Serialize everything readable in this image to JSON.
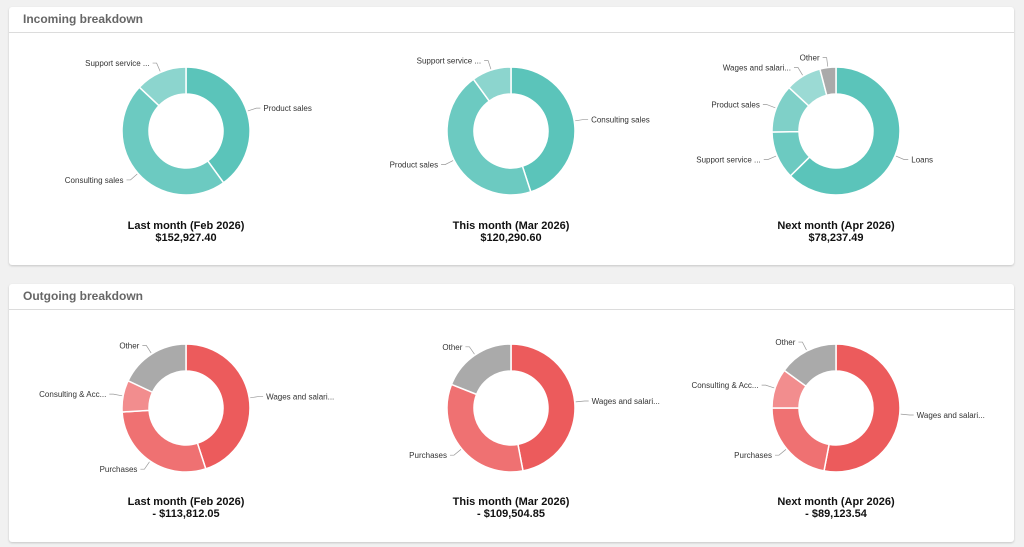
{
  "incoming": {
    "title": "Incoming breakdown",
    "charts": [
      {
        "caption": "Last month (Feb 2026)",
        "amount": "$152,927.40"
      },
      {
        "caption": "This month (Mar 2026)",
        "amount": "$120,290.60"
      },
      {
        "caption": "Next month (Apr 2026)",
        "amount": "$78,237.49"
      }
    ]
  },
  "outgoing": {
    "title": "Outgoing breakdown",
    "charts": [
      {
        "caption": "Last month (Feb 2026)",
        "amount": "- $113,812.05"
      },
      {
        "caption": "This month (Mar 2026)",
        "amount": "- $109,504.85"
      },
      {
        "caption": "Next month (Apr 2026)",
        "amount": "- $89,123.54"
      }
    ]
  },
  "chart_data": [
    {
      "type": "pie",
      "title": "Last month (Feb 2026)",
      "categories": [
        "Product sales",
        "Consulting sales",
        "Support service ..."
      ],
      "values": [
        40,
        47,
        13
      ],
      "colors": [
        "#5bc4ba",
        "#6ccac1",
        "#8cd5ce"
      ]
    },
    {
      "type": "pie",
      "title": "This month (Mar 2026)",
      "categories": [
        "Consulting sales",
        "Product sales",
        "Support service ..."
      ],
      "values": [
        45,
        45,
        10
      ],
      "colors": [
        "#5bc4ba",
        "#6ccac1",
        "#8cd5ce"
      ]
    },
    {
      "type": "pie",
      "title": "Next month (Apr 2026)",
      "categories": [
        "Loans",
        "Support service ...",
        "Product sales",
        "Wages and salari...",
        "Other"
      ],
      "values": [
        62,
        12,
        12,
        9,
        4
      ],
      "colors": [
        "#5bc4ba",
        "#6ccac1",
        "#7fd0c8",
        "#9bdad4",
        "#aaaaaa"
      ]
    },
    {
      "type": "pie",
      "title": "Last month (Feb 2026)",
      "categories": [
        "Wages and salari...",
        "Purchases",
        "Consulting & Acc...",
        "Other"
      ],
      "values": [
        45,
        29,
        8,
        18
      ],
      "colors": [
        "#ec5b5c",
        "#ef7172",
        "#f28d8e",
        "#aaaaaa"
      ]
    },
    {
      "type": "pie",
      "title": "This month (Mar 2026)",
      "categories": [
        "Wages and salari...",
        "Purchases",
        "Other"
      ],
      "values": [
        47,
        34,
        19
      ],
      "colors": [
        "#ec5b5c",
        "#ef7172",
        "#aaaaaa"
      ]
    },
    {
      "type": "pie",
      "title": "Next month (Apr 2026)",
      "categories": [
        "Wages and salari...",
        "Purchases",
        "Consulting & Acc...",
        "Other"
      ],
      "values": [
        53,
        22,
        10,
        15
      ],
      "colors": [
        "#ec5b5c",
        "#ef7172",
        "#f28d8e",
        "#aaaaaa"
      ]
    }
  ]
}
